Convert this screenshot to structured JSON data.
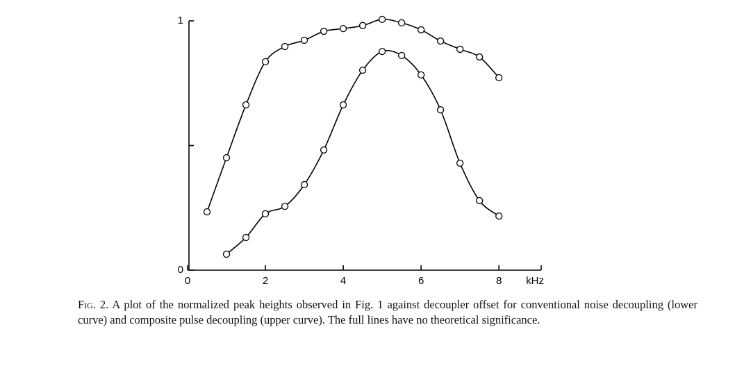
{
  "chart_data": {
    "type": "line",
    "x": [
      0.5,
      1,
      1.5,
      2,
      2.5,
      3,
      3.5,
      4,
      4.5,
      5,
      5.5,
      6,
      6.5,
      7,
      7.5,
      8
    ],
    "series": [
      {
        "color": "#000000",
        "values": [
          0.234,
          0.451,
          0.663,
          0.836,
          0.897,
          0.922,
          0.958,
          0.969,
          0.981,
          1.006,
          0.992,
          0.964,
          0.919,
          0.886,
          0.855,
          0.772
        ]
      },
      {
        "color": "#000000",
        "values": [
          null,
          0.064,
          0.131,
          0.226,
          0.256,
          0.343,
          0.482,
          0.663,
          0.802,
          0.877,
          0.861,
          0.783,
          0.643,
          0.429,
          0.279,
          0.217
        ]
      }
    ],
    "xlim": [
      0,
      9.3
    ],
    "ylim": [
      0,
      1
    ],
    "xticks": [
      0,
      2,
      4,
      6,
      8
    ],
    "yticks": [
      0,
      {
        "value": 0.5,
        "label": null
      },
      1
    ],
    "xlabel": "kHz"
  },
  "caption": {
    "label": "Fig. 2.",
    "text": "A plot of the normalized peak heights observed in Fig. 1 against decoupler offset for conventional noise decoupling (lower curve) and composite pulse decoupling (upper curve). The full lines have no theoretical significance."
  }
}
